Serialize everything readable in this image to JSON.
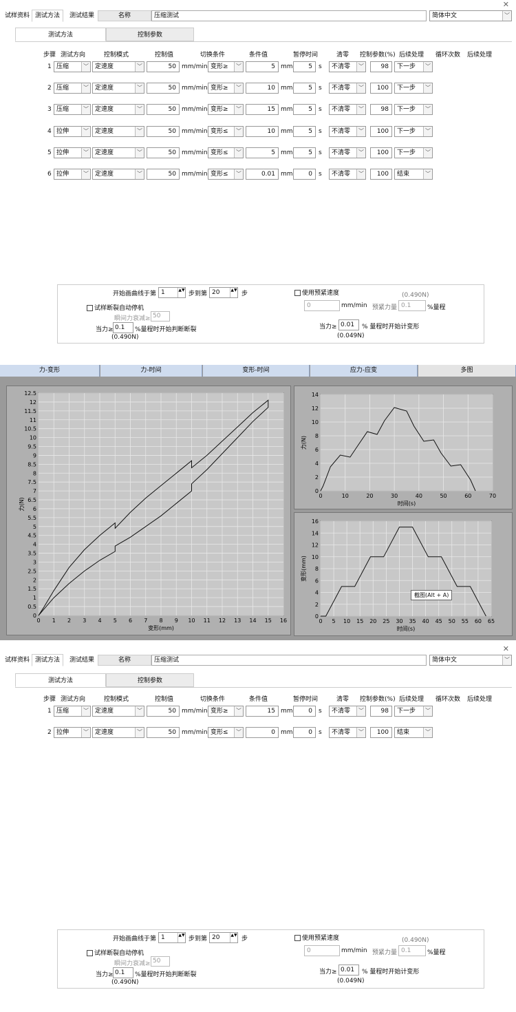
{
  "close_icon": "close-icon",
  "top_tabs": [
    "试样资料",
    "测试方法",
    "测试结果"
  ],
  "name_label": "名称",
  "name_value": "压缩测试",
  "language": "简体中文",
  "sub_tabs": [
    "测试方法",
    "控制参数"
  ],
  "headers": {
    "step": "步骤",
    "direction": "测试方向",
    "mode": "控制模式",
    "ctrl_value": "控制值",
    "switch": "切换条件",
    "cond_value": "条件值",
    "pause": "暂停时间",
    "zero": "清零",
    "ctrl_param": "控制参数(%)",
    "follow": "后续处理",
    "loops": "循环次数",
    "follow2": "后续处理"
  },
  "units": {
    "speed": "mm/min",
    "len": "mm",
    "sec": "s"
  },
  "steps1": [
    {
      "no": "1",
      "dir": "压缩",
      "mode": "定速度",
      "val": "50",
      "sw": "变形≥",
      "cond": "5",
      "pause": "5",
      "zero": "不清零",
      "param": "98",
      "next": "下一步"
    },
    {
      "no": "2",
      "dir": "压缩",
      "mode": "定速度",
      "val": "50",
      "sw": "变形≥",
      "cond": "10",
      "pause": "5",
      "zero": "不清零",
      "param": "100",
      "next": "下一步"
    },
    {
      "no": "3",
      "dir": "压缩",
      "mode": "定速度",
      "val": "50",
      "sw": "变形≥",
      "cond": "15",
      "pause": "5",
      "zero": "不清零",
      "param": "98",
      "next": "下一步"
    },
    {
      "no": "4",
      "dir": "拉伸",
      "mode": "定速度",
      "val": "50",
      "sw": "变形≤",
      "cond": "10",
      "pause": "5",
      "zero": "不清零",
      "param": "100",
      "next": "下一步"
    },
    {
      "no": "5",
      "dir": "拉伸",
      "mode": "定速度",
      "val": "50",
      "sw": "变形≤",
      "cond": "5",
      "pause": "5",
      "zero": "不清零",
      "param": "100",
      "next": "下一步"
    },
    {
      "no": "6",
      "dir": "拉伸",
      "mode": "定速度",
      "val": "50",
      "sw": "变形≤",
      "cond": "0.01",
      "pause": "0",
      "zero": "不清零",
      "param": "100",
      "next": "结束"
    }
  ],
  "steps2": [
    {
      "no": "1",
      "dir": "压缩",
      "mode": "定速度",
      "val": "50",
      "sw": "变形≥",
      "cond": "15",
      "pause": "0",
      "zero": "不清零",
      "param": "98",
      "next": "下一步"
    },
    {
      "no": "2",
      "dir": "拉伸",
      "mode": "定速度",
      "val": "50",
      "sw": "变形≤",
      "cond": "0",
      "pause": "0",
      "zero": "不清零",
      "param": "100",
      "next": "结束"
    }
  ],
  "bottom": {
    "start_curve": "开始画曲线于第",
    "start_value": "1",
    "step_to": "步到第",
    "to_value": "20",
    "step_suffix": "步",
    "break_stop": "试样断裂自动停机",
    "drop_label": "瞬间力衰减≥:",
    "drop_value": "50",
    "force_ge": "当力≥:",
    "force_value": "0.1",
    "force_suffix": "%量程时开始判断断裂",
    "force_n": "(0.490N)",
    "preload": "使用预紧速度",
    "preload_n": "(0.490N)",
    "preload_value": "0",
    "preload_unit": "mm/min",
    "preload_force": "预紧力量",
    "preload_force_value": "0.1",
    "preload_force_suffix": "%量程",
    "force2_ge": "当力≥",
    "force2_value": "0.01",
    "force2_suffix": "% 量程时开始计变形",
    "force2_n": "(0.049N)"
  },
  "graph_tabs": [
    "力-变形",
    "力-时间",
    "变形-时间",
    "应力-应变",
    "多图"
  ],
  "tooltip": "截图(Alt + A)",
  "chart_data": [
    {
      "type": "line",
      "xlabel": "变形(mm)",
      "ylabel": "力(N)",
      "xlim": [
        0,
        16
      ],
      "ylim": [
        0,
        12.5
      ],
      "xticks": [
        0,
        1,
        2,
        3,
        4,
        5,
        6,
        7,
        8,
        9,
        10,
        11,
        12,
        13,
        14,
        15,
        16
      ],
      "yticks": [
        0,
        0.5,
        1,
        1.5,
        2,
        2.5,
        3,
        3.5,
        4,
        4.5,
        5,
        5.5,
        6,
        6.5,
        7,
        7.5,
        8,
        8.5,
        9,
        9.5,
        10,
        10.5,
        11,
        11.5,
        12,
        12.5
      ],
      "grid": true,
      "x": [
        0,
        0.3,
        1,
        2,
        3,
        4,
        5,
        5,
        6,
        7,
        8,
        9,
        10,
        10,
        11,
        12,
        13,
        14,
        15,
        15,
        14,
        13,
        12,
        11,
        10,
        10,
        9,
        8,
        7,
        6,
        5,
        5,
        4,
        3,
        2,
        1,
        0.5,
        0
      ],
      "y": [
        0,
        0.4,
        1.4,
        2.7,
        3.7,
        4.5,
        5.2,
        4.9,
        5.8,
        6.6,
        7.3,
        8.0,
        8.7,
        8.3,
        9.0,
        9.8,
        10.6,
        11.4,
        12.1,
        11.7,
        10.9,
        10.0,
        9.1,
        8.2,
        7.4,
        7.0,
        6.3,
        5.6,
        5.0,
        4.4,
        3.9,
        3.6,
        3.1,
        2.5,
        1.8,
        1.0,
        0.5,
        0
      ]
    },
    {
      "type": "line",
      "xlabel": "时间(s)",
      "ylabel": "力(N)",
      "xlim": [
        0,
        70
      ],
      "ylim": [
        0,
        14
      ],
      "xticks": [
        0,
        10,
        20,
        30,
        40,
        50,
        60,
        70
      ],
      "yticks": [
        0,
        2,
        4,
        6,
        8,
        10,
        12,
        14
      ],
      "grid": true,
      "x": [
        0,
        1,
        4,
        8,
        12,
        15,
        19,
        23,
        26,
        30,
        35,
        38,
        42,
        46,
        49,
        53,
        57,
        61,
        63
      ],
      "y": [
        0,
        0.7,
        3.5,
        5.2,
        4.9,
        6.5,
        8.6,
        8.2,
        10.2,
        12.1,
        11.6,
        9.4,
        7.2,
        7.4,
        5.5,
        3.6,
        3.8,
        1.6,
        0
      ]
    },
    {
      "type": "line",
      "xlabel": "时间(s)",
      "ylabel": "变形(mm)",
      "xlim": [
        0,
        65
      ],
      "ylim": [
        0,
        16
      ],
      "xticks": [
        0,
        5,
        10,
        15,
        20,
        25,
        30,
        35,
        40,
        45,
        50,
        55,
        60,
        65
      ],
      "yticks": [
        0,
        2,
        4,
        6,
        8,
        10,
        12,
        14,
        16
      ],
      "grid": true,
      "x": [
        0,
        2,
        8,
        13,
        19,
        24,
        30,
        35,
        41,
        46,
        52,
        57,
        63
      ],
      "y": [
        0,
        0,
        5,
        5,
        10,
        10,
        15,
        15,
        10,
        10,
        5,
        5,
        0
      ]
    }
  ]
}
